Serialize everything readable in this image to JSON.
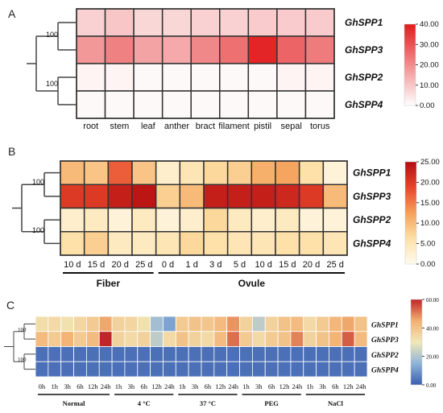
{
  "chart_data": [
    {
      "panel": "A",
      "type": "heatmap",
      "rows": [
        "GhSPP1",
        "GhSPP3",
        "GhSPP2",
        "GhSPP4"
      ],
      "columns": [
        "root",
        "stem",
        "leaf",
        "anther",
        "bract",
        "filament",
        "pistil",
        "sepal",
        "torus"
      ],
      "values": [
        [
          8,
          10,
          7,
          7,
          8,
          8,
          9,
          9,
          9
        ],
        [
          18,
          22,
          16,
          15,
          21,
          25,
          38,
          27,
          23
        ],
        [
          2,
          2,
          1,
          1,
          1,
          1,
          1,
          2,
          2
        ],
        [
          1,
          1,
          1,
          1,
          1,
          1,
          1,
          1,
          1
        ]
      ],
      "colorbar": {
        "range": [
          0,
          40
        ],
        "ticks": [
          "40.00",
          "30.00",
          "20.00",
          "10.00",
          "0.00"
        ]
      },
      "dendrogram": {
        "bootstrap": [
          "100",
          "100"
        ]
      },
      "colors": {
        "low": "#ffffff",
        "high": "#e31a1c"
      }
    },
    {
      "panel": "B",
      "type": "heatmap",
      "rows": [
        "GhSPP1",
        "GhSPP3",
        "GhSPP2",
        "GhSPP4"
      ],
      "columns": [
        "10 d",
        "15 d",
        "20 d",
        "25 d",
        "0 d",
        "1 d",
        "3 d",
        "5 d",
        "10 d",
        "15 d",
        "20 d",
        "25 d"
      ],
      "groups": [
        {
          "label": "Fiber",
          "span": [
            0,
            3
          ]
        },
        {
          "label": "Ovule",
          "span": [
            4,
            11
          ]
        }
      ],
      "values": [
        [
          10,
          9,
          17,
          9,
          3,
          5,
          7,
          8,
          11,
          12,
          6,
          2
        ],
        [
          20,
          20,
          23,
          24,
          8,
          10,
          23,
          23,
          23,
          22,
          20,
          10
        ],
        [
          3,
          4,
          2,
          4,
          2,
          3,
          7,
          4,
          3,
          4,
          2,
          2
        ],
        [
          6,
          8,
          4,
          4,
          5,
          7,
          6,
          5,
          5,
          6,
          6,
          5
        ]
      ],
      "colorbar": {
        "range": [
          0,
          25
        ],
        "ticks": [
          "25.00",
          "20.00",
          "15.00",
          "10.00",
          "5.00",
          "0.00"
        ]
      },
      "dendrogram": {
        "bootstrap": [
          "100",
          "100"
        ]
      },
      "colors": {
        "stops": [
          "#fffbf0",
          "#fde0a6",
          "#f5a05a",
          "#e8452c",
          "#b30d10"
        ]
      }
    },
    {
      "panel": "C",
      "type": "heatmap",
      "rows": [
        "GhSPP1",
        "GhSPP3",
        "GhSPP2",
        "GhSPP4"
      ],
      "columns": [
        "0h",
        "1h",
        "3h",
        "6h",
        "12h",
        "24h",
        "1h",
        "3h",
        "6h",
        "12h",
        "24h",
        "1h",
        "3h",
        "6h",
        "12h",
        "24h",
        "1h",
        "3h",
        "6h",
        "12h",
        "24h",
        "1h",
        "3h",
        "6h",
        "12h",
        "24h"
      ],
      "groups": [
        {
          "label": "Normal",
          "span": [
            0,
            5
          ]
        },
        {
          "label": "4 °C",
          "span": [
            6,
            10
          ]
        },
        {
          "label": "37 °C",
          "span": [
            11,
            15
          ]
        },
        {
          "label": "PEG",
          "span": [
            16,
            20
          ]
        },
        {
          "label": "NaCl",
          "span": [
            21,
            25
          ]
        }
      ],
      "values": [
        [
          33,
          34,
          32,
          35,
          38,
          46,
          36,
          35,
          32,
          18,
          12,
          38,
          40,
          39,
          42,
          48,
          36,
          22,
          36,
          40,
          42,
          34,
          38,
          43,
          46,
          40
        ],
        [
          42,
          38,
          44,
          38,
          42,
          60,
          36,
          34,
          36,
          22,
          34,
          40,
          36,
          34,
          42,
          52,
          38,
          34,
          38,
          40,
          50,
          36,
          40,
          44,
          54,
          42
        ],
        [
          3,
          3,
          3,
          3,
          3,
          3,
          3,
          3,
          3,
          3,
          3,
          3,
          3,
          3,
          3,
          3,
          3,
          3,
          3,
          3,
          3,
          3,
          3,
          3,
          3,
          3
        ],
        [
          3,
          3,
          3,
          3,
          3,
          3,
          3,
          3,
          3,
          3,
          3,
          3,
          3,
          3,
          3,
          3,
          3,
          3,
          3,
          3,
          3,
          3,
          3,
          3,
          3,
          3
        ]
      ],
      "colorbar": {
        "range": [
          0,
          60
        ],
        "ticks": [
          "60.00",
          "40.00",
          "20.00",
          "0.00"
        ]
      },
      "dendrogram": {
        "bootstrap": [
          "100",
          "100"
        ]
      },
      "colors": {
        "stops": [
          "#3a5fb0",
          "#8fb4d8",
          "#f1e8b8",
          "#f3b071",
          "#c0252a"
        ]
      }
    }
  ],
  "panels": {
    "a_label": "A",
    "b_label": "B",
    "c_label": "C"
  }
}
